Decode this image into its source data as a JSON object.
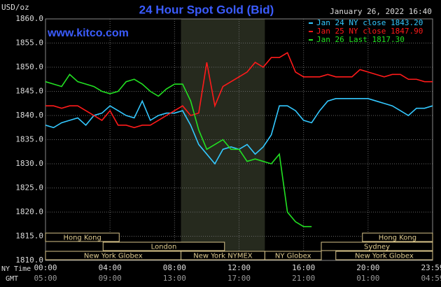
{
  "chart_data": {
    "type": "line",
    "title": "24 Hour Spot Gold (Bid)",
    "y_unit": "USD/oz",
    "source": "www.kitco.com",
    "timestamp": "January 26, 2022 16:40",
    "x_axis_labels": [
      "NY Time",
      "GMT"
    ],
    "x": [
      0,
      0.5,
      1,
      1.5,
      2,
      2.5,
      3,
      3.5,
      4,
      4.5,
      5,
      5.5,
      6,
      6.5,
      7,
      7.5,
      8,
      8.5,
      9,
      9.5,
      10,
      10.5,
      11,
      11.5,
      12,
      12.5,
      13,
      13.5,
      14,
      14.5,
      15,
      15.5,
      16,
      16.5,
      17,
      17.5,
      18,
      18.5,
      19,
      19.5,
      20,
      20.5,
      21,
      21.5,
      22,
      22.5,
      23,
      23.5,
      24
    ],
    "series": [
      {
        "name": "Jan 24 NY close 1843.20",
        "color": "#33c8ff",
        "values": [
          1838,
          1837.5,
          1838.5,
          1839,
          1839.5,
          1838,
          1840,
          1840.5,
          1842,
          1841,
          1840,
          1839.5,
          1843,
          1839,
          1840,
          1840.5,
          1840.5,
          1841,
          1838,
          1834,
          1832,
          1830,
          1833,
          1833.5,
          1833,
          1834,
          1832,
          1833.5,
          1836,
          1842,
          1842,
          1841,
          1839,
          1838.5,
          1841,
          1843,
          1843.5,
          1843.5,
          1843.5,
          1843.5,
          1843.5,
          1843,
          1842.5,
          1842,
          1841,
          1840,
          1841.5,
          1841.5,
          1842
        ]
      },
      {
        "name": "Jan 25 NY close 1847.90",
        "color": "#ff1a1a",
        "values": [
          1842,
          1842,
          1841.5,
          1842,
          1842,
          1841,
          1840,
          1839,
          1841,
          1838,
          1838,
          1837.5,
          1838,
          1838,
          1839,
          1840,
          1841,
          1842,
          1840,
          1840.5,
          1851,
          1842,
          1846,
          1847,
          1848,
          1849,
          1851,
          1850,
          1852,
          1852,
          1853,
          1849,
          1848,
          1848,
          1848,
          1848.5,
          1848,
          1848,
          1848,
          1849.5,
          1849,
          1848.5,
          1848,
          1848.5,
          1848.5,
          1847.5,
          1847.5,
          1847,
          1847
        ]
      },
      {
        "name": "Jan 26 Last 1817.30",
        "color": "#22e022",
        "values": [
          1847,
          1846.5,
          1846,
          1848.5,
          1847,
          1846.5,
          1846,
          1845,
          1844.5,
          1845,
          1847,
          1847.5,
          1846.5,
          1845,
          1844,
          1845.5,
          1846.5,
          1846.5,
          1843,
          1837,
          1833,
          1834,
          1835,
          1833,
          1833,
          1830.5,
          1831,
          1830.5,
          1830,
          1832,
          1820,
          1818,
          1817,
          1817,
          null,
          null,
          null,
          null,
          null,
          null,
          null,
          null,
          null,
          null,
          null,
          null,
          null,
          null,
          null
        ]
      }
    ],
    "xlim": [
      0,
      24
    ],
    "xticks": [
      {
        "value": 0,
        "label": "00:00"
      },
      {
        "value": 4,
        "label": "04:00"
      },
      {
        "value": 8,
        "label": "08:00"
      },
      {
        "value": 12,
        "label": "12:00"
      },
      {
        "value": 16,
        "label": "16:00"
      },
      {
        "value": 20,
        "label": "20:00"
      },
      {
        "value": 24,
        "label": "23:59"
      }
    ],
    "xticks_gmt": [
      "05:00",
      "09:00",
      "13:00",
      "17:00",
      "21:00",
      "01:00",
      "04:59"
    ],
    "ylim": [
      1810,
      1860
    ],
    "yticks": [
      {
        "value": 1810,
        "label": "1810.0"
      },
      {
        "value": 1815,
        "label": "1815.0"
      },
      {
        "value": 1820,
        "label": "1820.0"
      },
      {
        "value": 1825,
        "label": "1825.0"
      },
      {
        "value": 1830,
        "label": "1830.0"
      },
      {
        "value": 1835,
        "label": "1835.0"
      },
      {
        "value": 1840,
        "label": "1840.0"
      },
      {
        "value": 1845,
        "label": "1845.0"
      },
      {
        "value": 1850,
        "label": "1850.0"
      },
      {
        "value": 1855,
        "label": "1855.0"
      },
      {
        "value": 1860,
        "label": "1860.0"
      }
    ],
    "grid": true,
    "shaded_range": [
      8.4,
      13.6
    ],
    "sessions": [
      {
        "label": "Hong Kong",
        "start": 0,
        "end": 4.57,
        "row": 0
      },
      {
        "label": "London",
        "start": 3.57,
        "end": 11.1,
        "row": 1
      },
      {
        "label": "New York Globex",
        "start": 0,
        "end": 8.4,
        "row": 2
      },
      {
        "label": "New York NYMEX",
        "start": 8.4,
        "end": 13.6,
        "row": 2
      },
      {
        "label": "NY Globex",
        "start": 13.6,
        "end": 17.1,
        "row": 2
      },
      {
        "label": "Hong Kong",
        "start": 19.65,
        "end": 24,
        "row": 0
      },
      {
        "label": "Sydney",
        "start": 17.1,
        "end": 24,
        "row": 1
      },
      {
        "label": "New York Globex",
        "start": 18,
        "end": 24,
        "row": 2
      }
    ]
  }
}
